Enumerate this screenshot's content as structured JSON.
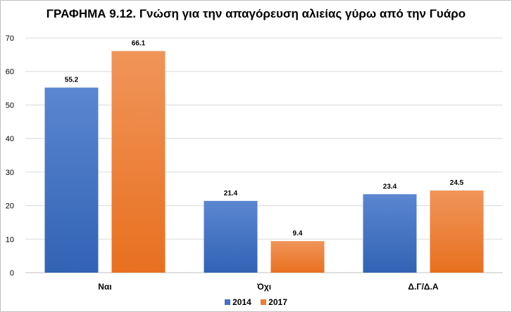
{
  "chart_data": {
    "type": "bar",
    "title": "ΓΡΑΦΗΜΑ 9.12. Γνώση για την απαγόρευση αλιείας γύρω από την Γυάρο",
    "categories": [
      "Ναι",
      "Όχι",
      "Δ.Γ/Δ.Α"
    ],
    "series": [
      {
        "name": "2014",
        "values": [
          55.2,
          21.4,
          23.4
        ],
        "color": "#4472c4"
      },
      {
        "name": "2017",
        "values": [
          66.1,
          9.4,
          24.5
        ],
        "color": "#ed7d31"
      }
    ],
    "ylim": [
      0,
      70
    ],
    "yticks": [
      0,
      10,
      20,
      30,
      40,
      50,
      60,
      70
    ],
    "grid": true,
    "legend_position": "bottom"
  }
}
